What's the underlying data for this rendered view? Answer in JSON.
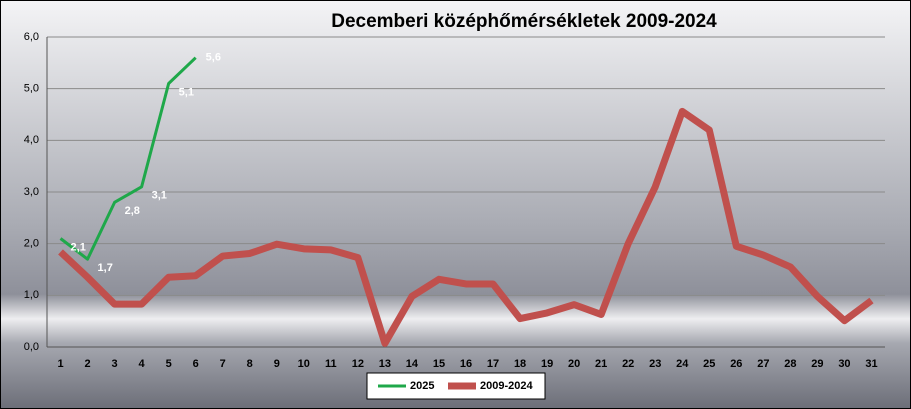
{
  "chart_data": {
    "type": "line",
    "title": "Decemberi középhőmérsékletek 2009-2024",
    "categories": [
      "1",
      "2",
      "3",
      "4",
      "5",
      "6",
      "7",
      "8",
      "9",
      "10",
      "11",
      "12",
      "13",
      "14",
      "15",
      "16",
      "17",
      "18",
      "19",
      "20",
      "21",
      "22",
      "23",
      "24",
      "25",
      "26",
      "27",
      "28",
      "29",
      "30",
      "31"
    ],
    "series": [
      {
        "name": "2025",
        "color": "#1fa84a",
        "values": [
          2.1,
          1.7,
          2.8,
          3.1,
          5.1,
          5.6,
          null,
          null,
          null,
          null,
          null,
          null,
          null,
          null,
          null,
          null,
          null,
          null,
          null,
          null,
          null,
          null,
          null,
          null,
          null,
          null,
          null,
          null,
          null,
          null,
          null
        ],
        "value_labels": [
          "2,1",
          "1,7",
          "2,8",
          "3,1",
          "5,1",
          "5,6",
          null,
          null,
          null,
          null,
          null,
          null,
          null,
          null,
          null,
          null,
          null,
          null,
          null,
          null,
          null,
          null,
          null,
          null,
          null,
          null,
          null,
          null,
          null,
          null,
          null
        ]
      },
      {
        "name": "2009-2024",
        "color": "#c0504d",
        "values": [
          1.84,
          1.35,
          0.83,
          0.83,
          1.35,
          1.38,
          1.76,
          1.81,
          1.99,
          1.9,
          1.88,
          1.73,
          0.07,
          0.98,
          1.31,
          1.22,
          1.22,
          0.55,
          0.66,
          0.82,
          0.63,
          2.0,
          3.1,
          4.56,
          4.2,
          1.95,
          1.78,
          1.55,
          0.98,
          0.51,
          0.9
        ]
      }
    ],
    "ylim": [
      0,
      6
    ],
    "yticks": [
      {
        "value": 0,
        "label": "0,0"
      },
      {
        "value": 1,
        "label": "1,0"
      },
      {
        "value": 2,
        "label": "2,0"
      },
      {
        "value": 3,
        "label": "3,0"
      },
      {
        "value": 4,
        "label": "4,0"
      },
      {
        "value": 5,
        "label": "5,0"
      },
      {
        "value": 6,
        "label": "6,0"
      }
    ],
    "grid": true
  }
}
